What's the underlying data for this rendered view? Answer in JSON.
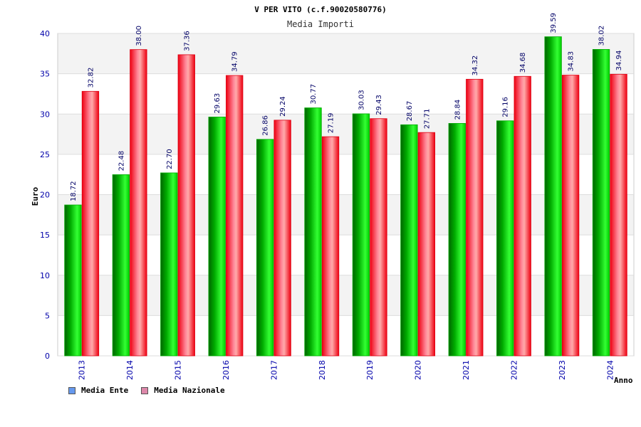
{
  "chart_data": {
    "type": "bar",
    "title": "V PER VITO (c.f.90020580776)",
    "subtitle": "Media Importi",
    "xlabel": "Anno",
    "ylabel": "Euro",
    "ylim": [
      0,
      40
    ],
    "yticks": [
      "0",
      "5",
      "10",
      "15",
      "20",
      "25",
      "30",
      "35",
      "40"
    ],
    "grid": true,
    "legend_placement": "bottom-left",
    "categories": [
      "2013",
      "2014",
      "2015",
      "2016",
      "2017",
      "2018",
      "2019",
      "2020",
      "2021",
      "2022",
      "2023",
      "2024"
    ],
    "series": [
      {
        "name": "Media Ente",
        "color": "#00cc00",
        "legend_color": "#6699ee",
        "values": [
          18.72,
          22.48,
          22.7,
          29.63,
          26.86,
          30.77,
          30.03,
          28.67,
          28.84,
          29.16,
          39.59,
          38.02
        ],
        "labels": [
          "18.72",
          "22.48",
          "22.70",
          "29.63",
          "26.86",
          "30.77",
          "30.03",
          "28.67",
          "28.84",
          "29.16",
          "39.59",
          "38.02"
        ]
      },
      {
        "name": "Media Nazionale",
        "color": "#ff2233",
        "legend_color": "#dd88aa",
        "values": [
          32.82,
          38.0,
          37.36,
          34.79,
          29.24,
          27.19,
          29.43,
          27.71,
          34.32,
          34.68,
          34.83,
          34.94
        ],
        "labels": [
          "32.82",
          "38.00",
          "37.36",
          "34.79",
          "29.24",
          "27.19",
          "29.43",
          "27.71",
          "34.32",
          "34.68",
          "34.83",
          "34.94"
        ]
      }
    ]
  }
}
